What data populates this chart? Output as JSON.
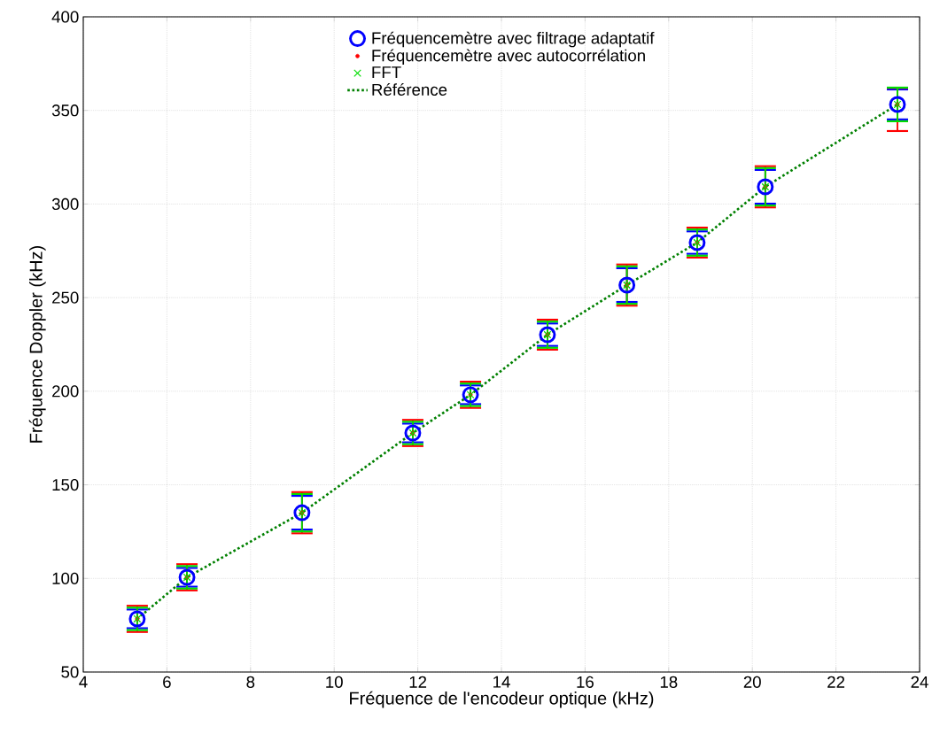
{
  "chart_data": {
    "type": "scatter",
    "xlabel": "Fréquence de l'encodeur optique (kHz)",
    "ylabel": "Fréquence Doppler (kHz)",
    "x": [
      5.29,
      6.48,
      9.23,
      11.88,
      13.26,
      15.1,
      17.0,
      18.68,
      20.31,
      23.47
    ],
    "series": [
      {
        "name": "Fréquencemètre avec filtrage adaptatif",
        "color": "#0000ff",
        "marker": "circle",
        "values": [
          78.4,
          100.6,
          135.1,
          177.7,
          198.1,
          230.2,
          256.7,
          279.4,
          309.2,
          353.2
        ],
        "errors": [
          5,
          5,
          9,
          5,
          5,
          6,
          9,
          6,
          9,
          8
        ]
      },
      {
        "name": "Fréquencemètre avec autocorrélation",
        "color": "#ff0000",
        "marker": "dot",
        "values": [
          78.4,
          100.6,
          135.1,
          177.7,
          198.1,
          230.2,
          256.7,
          279.4,
          309.2,
          353.2
        ],
        "errors": [
          7,
          7,
          11,
          7,
          7,
          8,
          11,
          8,
          11,
          [
            339,
            362
          ]
        ]
      },
      {
        "name": "FFT",
        "color": "#00dd00",
        "marker": "cross",
        "values": [
          78.4,
          100.6,
          135.1,
          177.7,
          198.1,
          230.2,
          256.7,
          279.4,
          309.2,
          353.2
        ],
        "errors": [
          6,
          6,
          10,
          6,
          6,
          7,
          10,
          7,
          10,
          9
        ]
      },
      {
        "name": "Référence",
        "type": "line",
        "color": "#008000",
        "line_style": "dotted",
        "marker": "none",
        "values": [
          78.4,
          100.6,
          135.1,
          177.7,
          198.1,
          230.2,
          256.7,
          279.4,
          309.2,
          353.2
        ]
      }
    ],
    "xlim": [
      4,
      24
    ],
    "ylim": [
      50,
      400
    ],
    "xticks": [
      4,
      6,
      8,
      10,
      12,
      14,
      16,
      18,
      20,
      22,
      24
    ],
    "yticks": [
      50,
      100,
      150,
      200,
      250,
      300,
      350,
      400
    ],
    "grid": true,
    "legend": "top"
  }
}
